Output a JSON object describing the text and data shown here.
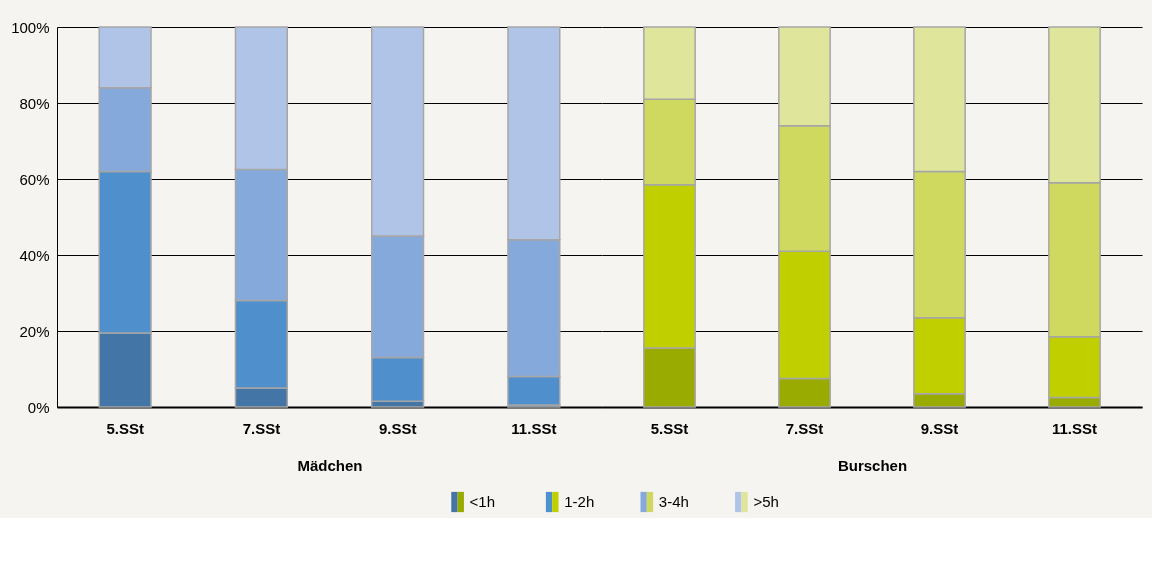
{
  "chart_data": [
    {
      "type": "bar",
      "stacked": true,
      "xlabel": "Mädchen",
      "categories": [
        "5.SSt",
        "7.SSt",
        "9.SSt",
        "11.SSt"
      ],
      "series": [
        {
          "name": "<1h",
          "color": "#4375a6",
          "values": [
            19.5,
            5,
            1.5,
            0.5
          ]
        },
        {
          "name": "1-2h",
          "color": "#4f8fcb",
          "values": [
            42.5,
            23,
            11.5,
            7.5
          ]
        },
        {
          "name": "3-4h",
          "color": "#86a9db",
          "values": [
            22,
            34.5,
            32,
            36
          ]
        },
        {
          "name": ">5h",
          "color": "#afc4e7",
          "values": [
            16,
            37.5,
            55,
            56
          ]
        }
      ],
      "ylim": [
        0,
        100
      ],
      "yticks": [
        {
          "value": 0,
          "label": "0%"
        },
        {
          "value": 20,
          "label": "20%"
        },
        {
          "value": 40,
          "label": "40%"
        },
        {
          "value": 60,
          "label": "60%"
        },
        {
          "value": 80,
          "label": "80%"
        },
        {
          "value": 100,
          "label": "100%"
        }
      ],
      "grid": "y",
      "legend": "bottom"
    },
    {
      "type": "bar",
      "stacked": true,
      "xlabel": "Burschen",
      "categories": [
        "5.SSt",
        "7.SSt",
        "9.SSt",
        "11.SSt"
      ],
      "series": [
        {
          "color": "#9aab00",
          "values": [
            15.5,
            7.5,
            3.5,
            2.5
          ]
        },
        {
          "color": "#bfcf00",
          "values": [
            43,
            33.5,
            20,
            16
          ]
        },
        {
          "color": "#cfd95f",
          "values": [
            22.5,
            33,
            38.5,
            40.5
          ]
        },
        {
          "color": "#dfe69b",
          "values": [
            19,
            26,
            38,
            41
          ]
        }
      ],
      "ylim": [
        0,
        100
      ],
      "yticks": [
        0,
        20,
        40,
        60,
        80,
        100
      ],
      "grid": "y",
      "legend": "bottom",
      "tick_labels": "x"
    }
  ]
}
